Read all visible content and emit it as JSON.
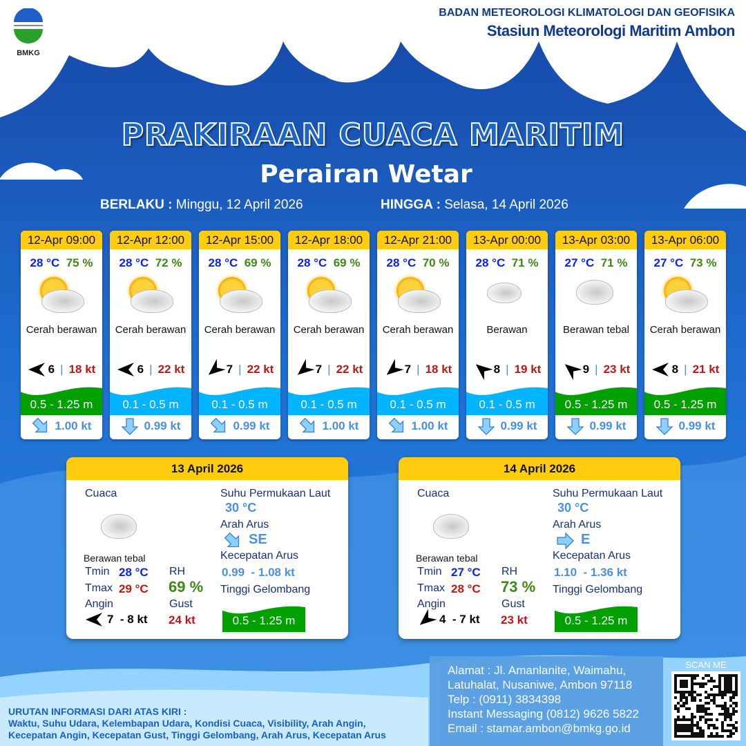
{
  "header": {
    "agency": "BADAN METEOROLOGI KLIMATOLOGI DAN GEOFISIKA",
    "station": "Stasiun Meteorologi Maritim Ambon",
    "logo_text": "BMKG"
  },
  "title": "PRAKIRAAN CUACA MARITIM",
  "area": "Perairan Wetar",
  "validity": {
    "from_label": "BERLAKU :",
    "from": "Minggu, 12 April 2026",
    "to_label": "HINGGA :",
    "to": "Selasa, 14 April 2026"
  },
  "colors": {
    "header_yellow": "#ffcc0f",
    "wave_low": "#00b4ff",
    "wave_moderate": "#00a000",
    "temp": "#0a1ef5",
    "humidity": "#3b8a14",
    "gust": "#c31515"
  },
  "cards": [
    {
      "time": "12-Apr 09:00",
      "temp": "28 °C",
      "rh": "75 %",
      "weather": "Cerah berawan",
      "icon": "partly-cloudy",
      "wind_arrow": "W",
      "wind": "6",
      "gust": "18 kt",
      "wave": "0.5 - 1.25 m",
      "wave_class": "moderate",
      "current_arrow": "SE",
      "current": "1.00 kt"
    },
    {
      "time": "12-Apr 12:00",
      "temp": "28 °C",
      "rh": "72 %",
      "weather": "Cerah berawan",
      "icon": "partly-cloudy",
      "wind_arrow": "W",
      "wind": "6",
      "gust": "22 kt",
      "wave": "0.1 - 0.5 m",
      "wave_class": "low",
      "current_arrow": "S",
      "current": "0.99 kt"
    },
    {
      "time": "12-Apr 15:00",
      "temp": "28 °C",
      "rh": "69 %",
      "weather": "Cerah berawan",
      "icon": "partly-cloudy",
      "wind_arrow": "SW",
      "wind": "7",
      "gust": "22 kt",
      "wave": "0.1 - 0.5 m",
      "wave_class": "low",
      "current_arrow": "SE",
      "current": "0.99 kt"
    },
    {
      "time": "12-Apr 18:00",
      "temp": "28 °C",
      "rh": "69 %",
      "weather": "Cerah berawan",
      "icon": "partly-cloudy",
      "wind_arrow": "SW",
      "wind": "7",
      "gust": "22 kt",
      "wave": "0.1 - 0.5 m",
      "wave_class": "low",
      "current_arrow": "SE",
      "current": "1.00 kt"
    },
    {
      "time": "12-Apr 21:00",
      "temp": "28 °C",
      "rh": "70 %",
      "weather": "Cerah berawan",
      "icon": "partly-cloudy",
      "wind_arrow": "SW",
      "wind": "7",
      "gust": "18 kt",
      "wave": "0.1 - 0.5 m",
      "wave_class": "low",
      "current_arrow": "SE",
      "current": "1.00 kt"
    },
    {
      "time": "13-Apr 00:00",
      "temp": "28 °C",
      "rh": "71 %",
      "weather": "Berawan",
      "icon": "cloudy-moon",
      "wind_arrow": "NW",
      "wind": "8",
      "gust": "19 kt",
      "wave": "0.1 - 0.5 m",
      "wave_class": "low",
      "current_arrow": "S",
      "current": "0.99 kt"
    },
    {
      "time": "13-Apr 03:00",
      "temp": "27 °C",
      "rh": "71 %",
      "weather": "Berawan tebal",
      "icon": "overcast",
      "wind_arrow": "NW",
      "wind": "9",
      "gust": "23 kt",
      "wave": "0.5 - 1.25 m",
      "wave_class": "moderate",
      "current_arrow": "S",
      "current": "0.99 kt"
    },
    {
      "time": "13-Apr 06:00",
      "temp": "27 °C",
      "rh": "73 %",
      "weather": "Cerah berawan",
      "icon": "partly-cloudy",
      "wind_arrow": "W",
      "wind": "8",
      "gust": "21 kt",
      "wave": "0.5 - 1.25 m",
      "wave_class": "moderate",
      "current_arrow": "S",
      "current": "0.99 kt"
    }
  ],
  "labels": {
    "cuaca": "Cuaca",
    "sst": "Suhu Permukaan Laut",
    "arah_arus": "Arah Arus",
    "kec_arus": "Kecepatan Arus",
    "tinggi": "Tinggi Gelombang",
    "tmin": "Tmin",
    "tmax": "Tmax",
    "rh": "RH",
    "angin": "Angin",
    "gust": "Gust"
  },
  "days": [
    {
      "date": "13 April 2026",
      "weather": "Berawan tebal",
      "tmin": "28 °C",
      "tmax": "29 °C",
      "rh": "69 %",
      "wind_arrow": "W",
      "wind": "7  - 8 kt",
      "gust": "24 kt",
      "sst": "30 °C",
      "current_arrow": "SE",
      "current_dir": "SE",
      "current": "0.99  - 1.08 kt",
      "wave": "0.5 - 1.25 m"
    },
    {
      "date": "14 April 2026",
      "weather": "Berawan tebal",
      "tmin": "27 °C",
      "tmax": "28 °C",
      "rh": "73 %",
      "wind_arrow": "SW",
      "wind": "4  - 7 kt",
      "gust": "23 kt",
      "sst": "30 °C",
      "current_arrow": "E",
      "current_dir": "E",
      "current": "1.10  - 1.36 kt",
      "wave": "0.5 - 1.25 m"
    }
  ],
  "footer": {
    "heading": "URUTAN INFORMASI DARI ATAS KIRI :",
    "line1": "Waktu, Suhu Udara, Kelembapan Udara, Kondisi Cuaca, Visibility, Arah Angin,",
    "line2": "Kecepatan Angin, Kecepatan Gust, Tinggi Gelombang, Arah Arus, Kecepatan Arus",
    "contact": [
      "Alamat : Jl. Amanlanite, Waimahu,",
      "Latuhalat, Nusaniwe, Ambon 97118",
      "Telp     : (0911) 3834398",
      "Instant Messaging (0812) 9626 5822",
      "Email    : stamar.ambon@bmkg.go.id"
    ],
    "scan": "SCAN ME"
  }
}
